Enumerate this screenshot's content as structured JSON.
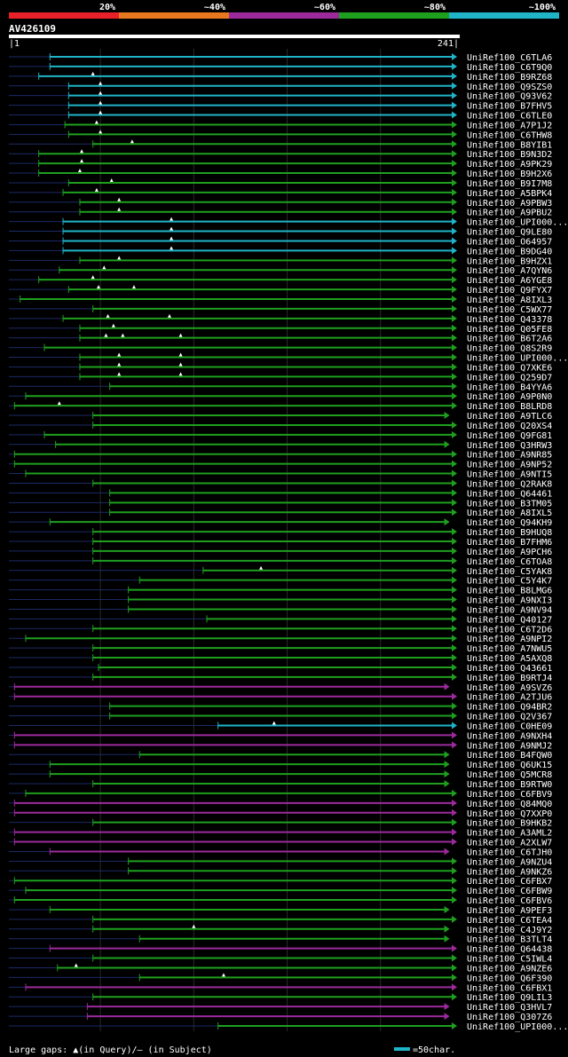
{
  "chart_data": {
    "type": "alignment-overview",
    "title": "AV426109",
    "query_length": 241,
    "axis": {
      "start_label": "|1",
      "end_label": "241|"
    },
    "legend_scale": [
      {
        "label": "20%",
        "color": "#e8202a"
      },
      {
        "label": "~40%",
        "color": "#e87820"
      },
      {
        "label": "~60%",
        "color": "#9c2a9c"
      },
      {
        "label": "~80%",
        "color": "#1ea01e"
      },
      {
        "label": "~100%",
        "color": "#20b4c8"
      }
    ],
    "gridlines": [
      50,
      100,
      150,
      200
    ],
    "footer": {
      "large_gaps": "Large gaps: ▲(in Query)/— (in Subject)",
      "scale_note": "=50char."
    },
    "hits": [
      {
        "label": "UniRef100_C6TLA6",
        "dash_start": 1,
        "bar_start": 23,
        "end": 241,
        "color": "#20b4c8",
        "gaps": []
      },
      {
        "label": "UniRef100_C6T9Q0",
        "dash_start": 1,
        "bar_start": 23,
        "end": 241,
        "color": "#20b4c8",
        "gaps": []
      },
      {
        "label": "UniRef100_B9RZ68",
        "dash_start": 1,
        "bar_start": 17,
        "end": 241,
        "color": "#20b4c8",
        "gaps": [
          46
        ]
      },
      {
        "label": "UniRef100_Q9SZS0",
        "dash_start": 1,
        "bar_start": 33,
        "end": 241,
        "color": "#20b4c8",
        "gaps": [
          50
        ]
      },
      {
        "label": "UniRef100_Q93V62",
        "dash_start": 1,
        "bar_start": 33,
        "end": 241,
        "color": "#20b4c8",
        "gaps": [
          50
        ]
      },
      {
        "label": "UniRef100_B7FHV5",
        "dash_start": 1,
        "bar_start": 33,
        "end": 241,
        "color": "#20b4c8",
        "gaps": [
          50
        ]
      },
      {
        "label": "UniRef100_C6TLE0",
        "dash_start": 1,
        "bar_start": 33,
        "end": 241,
        "color": "#20b4c8",
        "gaps": [
          50
        ]
      },
      {
        "label": "UniRef100_A7P1J2",
        "dash_start": 1,
        "bar_start": 31,
        "end": 241,
        "color": "#1ea01e",
        "gaps": [
          48
        ]
      },
      {
        "label": "UniRef100_C6THW8",
        "dash_start": 1,
        "bar_start": 33,
        "end": 241,
        "color": "#1ea01e",
        "gaps": [
          50
        ]
      },
      {
        "label": "UniRef100_B8YIB1",
        "dash_start": 1,
        "bar_start": 46,
        "end": 241,
        "color": "#1ea01e",
        "gaps": [
          67
        ]
      },
      {
        "label": "UniRef100_B9N3D2",
        "dash_start": 1,
        "bar_start": 17,
        "end": 241,
        "color": "#1ea01e",
        "gaps": [
          40
        ]
      },
      {
        "label": "UniRef100_A9PK29",
        "dash_start": 1,
        "bar_start": 17,
        "end": 241,
        "color": "#1ea01e",
        "gaps": [
          40
        ]
      },
      {
        "label": "UniRef100_B9H2X6",
        "dash_start": 1,
        "bar_start": 17,
        "end": 241,
        "color": "#1ea01e",
        "gaps": [
          39
        ]
      },
      {
        "label": "UniRef100_B9I7M8",
        "dash_start": 1,
        "bar_start": 33,
        "end": 241,
        "color": "#1ea01e",
        "gaps": [
          56
        ]
      },
      {
        "label": "UniRef100_A5BPK4",
        "dash_start": 1,
        "bar_start": 30,
        "end": 241,
        "color": "#1ea01e",
        "gaps": [
          48
        ]
      },
      {
        "label": "UniRef100_A9PBW3",
        "dash_start": 1,
        "bar_start": 39,
        "end": 241,
        "color": "#1ea01e",
        "gaps": [
          60
        ]
      },
      {
        "label": "UniRef100_A9PBU2",
        "dash_start": 1,
        "bar_start": 39,
        "end": 241,
        "color": "#1ea01e",
        "gaps": [
          60
        ]
      },
      {
        "label": "UniRef100_UPI000...",
        "dash_start": 1,
        "bar_start": 30,
        "end": 241,
        "color": "#20b4c8",
        "gaps": [
          88
        ]
      },
      {
        "label": "UniRef100_Q9LE80",
        "dash_start": 1,
        "bar_start": 30,
        "end": 241,
        "color": "#20b4c8",
        "gaps": [
          88
        ]
      },
      {
        "label": "UniRef100_O64957",
        "dash_start": 1,
        "bar_start": 30,
        "end": 241,
        "color": "#20b4c8",
        "gaps": [
          88
        ]
      },
      {
        "label": "UniRef100_B9DG40",
        "dash_start": 1,
        "bar_start": 30,
        "end": 241,
        "color": "#20b4c8",
        "gaps": [
          88
        ]
      },
      {
        "label": "UniRef100_B9HZX1",
        "dash_start": 1,
        "bar_start": 39,
        "end": 241,
        "color": "#1ea01e",
        "gaps": [
          60
        ]
      },
      {
        "label": "UniRef100_A7QYN6",
        "dash_start": 1,
        "bar_start": 28,
        "end": 241,
        "color": "#1ea01e",
        "gaps": [
          52
        ]
      },
      {
        "label": "UniRef100_A6YGE8",
        "dash_start": 1,
        "bar_start": 17,
        "end": 241,
        "color": "#1ea01e",
        "gaps": [
          46
        ]
      },
      {
        "label": "UniRef100_Q9FYX7",
        "dash_start": 1,
        "bar_start": 33,
        "end": 241,
        "color": "#1ea01e",
        "gaps": [
          49,
          68
        ]
      },
      {
        "label": "UniRef100_A8IXL3",
        "dash_start": 1,
        "bar_start": 7,
        "end": 241,
        "color": "#1ea01e",
        "gaps": []
      },
      {
        "label": "UniRef100_C5WX77",
        "dash_start": 1,
        "bar_start": 46,
        "end": 241,
        "color": "#1ea01e",
        "gaps": []
      },
      {
        "label": "UniRef100_Q43378",
        "dash_start": 1,
        "bar_start": 30,
        "end": 241,
        "color": "#1ea01e",
        "gaps": [
          54,
          87
        ]
      },
      {
        "label": "UniRef100_Q05FE8",
        "dash_start": 1,
        "bar_start": 39,
        "end": 241,
        "color": "#1ea01e",
        "gaps": [
          57
        ]
      },
      {
        "label": "UniRef100_B6T2A6",
        "dash_start": 1,
        "bar_start": 39,
        "end": 241,
        "color": "#1ea01e",
        "gaps": [
          53,
          62,
          93
        ]
      },
      {
        "label": "UniRef100_Q8S2R9",
        "dash_start": 1,
        "bar_start": 20,
        "end": 241,
        "color": "#1ea01e",
        "gaps": []
      },
      {
        "label": "UniRef100_UPI000...",
        "dash_start": 1,
        "bar_start": 39,
        "end": 241,
        "color": "#1ea01e",
        "gaps": [
          60,
          93
        ]
      },
      {
        "label": "UniRef100_Q7XKE6",
        "dash_start": 1,
        "bar_start": 39,
        "end": 241,
        "color": "#1ea01e",
        "gaps": [
          60,
          93
        ]
      },
      {
        "label": "UniRef100_Q259D7",
        "dash_start": 1,
        "bar_start": 39,
        "end": 241,
        "color": "#1ea01e",
        "gaps": [
          60,
          93
        ]
      },
      {
        "label": "UniRef100_B4YYA6",
        "dash_start": 1,
        "bar_start": 55,
        "end": 241,
        "color": "#1ea01e",
        "gaps": []
      },
      {
        "label": "UniRef100_A9P0N0",
        "dash_start": 1,
        "bar_start": 10,
        "end": 241,
        "color": "#1ea01e",
        "gaps": []
      },
      {
        "label": "UniRef100_B8LRD8",
        "dash_start": 1,
        "bar_start": 4,
        "end": 241,
        "color": "#1ea01e",
        "gaps": [
          28
        ]
      },
      {
        "label": "UniRef100_A9TLC6",
        "dash_start": 1,
        "bar_start": 46,
        "end": 237,
        "color": "#1ea01e",
        "gaps": []
      },
      {
        "label": "UniRef100_Q20XS4",
        "dash_start": 1,
        "bar_start": 46,
        "end": 241,
        "color": "#1ea01e",
        "gaps": []
      },
      {
        "label": "UniRef100_Q9FG81",
        "dash_start": 1,
        "bar_start": 20,
        "end": 241,
        "color": "#1ea01e",
        "gaps": []
      },
      {
        "label": "UniRef100_Q3HRW3",
        "dash_start": 1,
        "bar_start": 26,
        "end": 237,
        "color": "#1ea01e",
        "gaps": []
      },
      {
        "label": "UniRef100_A9NR85",
        "dash_start": 1,
        "bar_start": 4,
        "end": 241,
        "color": "#1ea01e",
        "gaps": []
      },
      {
        "label": "UniRef100_A9NP52",
        "dash_start": 1,
        "bar_start": 4,
        "end": 241,
        "color": "#1ea01e",
        "gaps": []
      },
      {
        "label": "UniRef100_A9NTI5",
        "dash_start": 1,
        "bar_start": 10,
        "end": 241,
        "color": "#1ea01e",
        "gaps": []
      },
      {
        "label": "UniRef100_Q2RAK8",
        "dash_start": 1,
        "bar_start": 46,
        "end": 241,
        "color": "#1ea01e",
        "gaps": []
      },
      {
        "label": "UniRef100_Q64461",
        "dash_start": 1,
        "bar_start": 55,
        "end": 241,
        "color": "#1ea01e",
        "gaps": []
      },
      {
        "label": "UniRef100_B3TM05",
        "dash_start": 1,
        "bar_start": 55,
        "end": 241,
        "color": "#1ea01e",
        "gaps": []
      },
      {
        "label": "UniRef100_A8IXL5",
        "dash_start": 1,
        "bar_start": 55,
        "end": 241,
        "color": "#1ea01e",
        "gaps": []
      },
      {
        "label": "UniRef100_Q94KH9",
        "dash_start": 1,
        "bar_start": 23,
        "end": 237,
        "color": "#1ea01e",
        "gaps": []
      },
      {
        "label": "UniRef100_B9HUQ8",
        "dash_start": 1,
        "bar_start": 46,
        "end": 241,
        "color": "#1ea01e",
        "gaps": []
      },
      {
        "label": "UniRef100_B7FHM6",
        "dash_start": 1,
        "bar_start": 46,
        "end": 241,
        "color": "#1ea01e",
        "gaps": []
      },
      {
        "label": "UniRef100_A9PCH6",
        "dash_start": 1,
        "bar_start": 46,
        "end": 241,
        "color": "#1ea01e",
        "gaps": []
      },
      {
        "label": "UniRef100_C6TOA8",
        "dash_start": 1,
        "bar_start": 46,
        "end": 241,
        "color": "#1ea01e",
        "gaps": []
      },
      {
        "label": "UniRef100_C5YAK8",
        "dash_start": 1,
        "bar_start": 105,
        "end": 241,
        "color": "#1ea01e",
        "gaps": [
          136
        ]
      },
      {
        "label": "UniRef100_C5Y4K7",
        "dash_start": 1,
        "bar_start": 71,
        "end": 241,
        "color": "#1ea01e",
        "gaps": []
      },
      {
        "label": "UniRef100_B8LMG6",
        "dash_start": 1,
        "bar_start": 65,
        "end": 241,
        "color": "#1ea01e",
        "gaps": []
      },
      {
        "label": "UniRef100_A9NXI3",
        "dash_start": 1,
        "bar_start": 65,
        "end": 241,
        "color": "#1ea01e",
        "gaps": []
      },
      {
        "label": "UniRef100_A9NV94",
        "dash_start": 1,
        "bar_start": 65,
        "end": 241,
        "color": "#1ea01e",
        "gaps": []
      },
      {
        "label": "UniRef100_Q40127",
        "dash_start": 1,
        "bar_start": 107,
        "end": 241,
        "color": "#1ea01e",
        "gaps": []
      },
      {
        "label": "UniRef100_C6T2D6",
        "dash_start": 1,
        "bar_start": 46,
        "end": 241,
        "color": "#1ea01e",
        "gaps": []
      },
      {
        "label": "UniRef100_A9NPI2",
        "dash_start": 1,
        "bar_start": 10,
        "end": 241,
        "color": "#1ea01e",
        "gaps": []
      },
      {
        "label": "UniRef100_A7NWU5",
        "dash_start": 1,
        "bar_start": 46,
        "end": 241,
        "color": "#1ea01e",
        "gaps": []
      },
      {
        "label": "UniRef100_A5AXQ8",
        "dash_start": 1,
        "bar_start": 46,
        "end": 241,
        "color": "#1ea01e",
        "gaps": []
      },
      {
        "label": "UniRef100_Q43661",
        "dash_start": 1,
        "bar_start": 49,
        "end": 241,
        "color": "#1ea01e",
        "gaps": []
      },
      {
        "label": "UniRef100_B9RTJ4",
        "dash_start": 1,
        "bar_start": 46,
        "end": 241,
        "color": "#1ea01e",
        "gaps": []
      },
      {
        "label": "UniRef100_A9SVZ6",
        "dash_start": 1,
        "bar_start": 4,
        "end": 237,
        "color": "#9c2a9c",
        "gaps": []
      },
      {
        "label": "UniRef100_A2TJU6",
        "dash_start": 1,
        "bar_start": 4,
        "end": 241,
        "color": "#9c2a9c",
        "gaps": []
      },
      {
        "label": "UniRef100_Q94BR2",
        "dash_start": 1,
        "bar_start": 55,
        "end": 241,
        "color": "#1ea01e",
        "gaps": []
      },
      {
        "label": "UniRef100_Q2V367",
        "dash_start": 1,
        "bar_start": 55,
        "end": 241,
        "color": "#1ea01e",
        "gaps": []
      },
      {
        "label": "UniRef100_C0HE09",
        "dash_start": 1,
        "bar_start": 113,
        "end": 241,
        "color": "#20b4c8",
        "gaps": [
          143
        ]
      },
      {
        "label": "UniRef100_A9NXH4",
        "dash_start": 1,
        "bar_start": 4,
        "end": 241,
        "color": "#9c2a9c",
        "gaps": []
      },
      {
        "label": "UniRef100_A9NMJ2",
        "dash_start": 1,
        "bar_start": 4,
        "end": 241,
        "color": "#9c2a9c",
        "gaps": []
      },
      {
        "label": "UniRef100_B4FQW0",
        "dash_start": 1,
        "bar_start": 71,
        "end": 237,
        "color": "#1ea01e",
        "gaps": []
      },
      {
        "label": "UniRef100_Q6UK15",
        "dash_start": 1,
        "bar_start": 23,
        "end": 237,
        "color": "#1ea01e",
        "gaps": []
      },
      {
        "label": "UniRef100_Q5MCR8",
        "dash_start": 1,
        "bar_start": 23,
        "end": 237,
        "color": "#1ea01e",
        "gaps": []
      },
      {
        "label": "UniRef100_B9RTW0",
        "dash_start": 1,
        "bar_start": 46,
        "end": 237,
        "color": "#1ea01e",
        "gaps": []
      },
      {
        "label": "UniRef100_C6FBV9",
        "dash_start": 1,
        "bar_start": 10,
        "end": 241,
        "color": "#1ea01e",
        "gaps": []
      },
      {
        "label": "UniRef100_Q84MQ0",
        "dash_start": 1,
        "bar_start": 4,
        "end": 241,
        "color": "#9c2a9c",
        "gaps": []
      },
      {
        "label": "UniRef100_Q7XXP0",
        "dash_start": 1,
        "bar_start": 4,
        "end": 241,
        "color": "#9c2a9c",
        "gaps": []
      },
      {
        "label": "UniRef100_B9HKB2",
        "dash_start": 1,
        "bar_start": 46,
        "end": 241,
        "color": "#1ea01e",
        "gaps": []
      },
      {
        "label": "UniRef100_A3AML2",
        "dash_start": 1,
        "bar_start": 4,
        "end": 241,
        "color": "#9c2a9c",
        "gaps": []
      },
      {
        "label": "UniRef100_A2XLW7",
        "dash_start": 1,
        "bar_start": 4,
        "end": 241,
        "color": "#9c2a9c",
        "gaps": []
      },
      {
        "label": "UniRef100_C6TJH0",
        "dash_start": 1,
        "bar_start": 23,
        "end": 237,
        "color": "#9c2a9c",
        "gaps": []
      },
      {
        "label": "UniRef100_A9NZU4",
        "dash_start": 1,
        "bar_start": 65,
        "end": 241,
        "color": "#1ea01e",
        "gaps": []
      },
      {
        "label": "UniRef100_A9NKZ6",
        "dash_start": 1,
        "bar_start": 65,
        "end": 241,
        "color": "#1ea01e",
        "gaps": []
      },
      {
        "label": "UniRef100_C6FBX7",
        "dash_start": 1,
        "bar_start": 4,
        "end": 241,
        "color": "#1ea01e",
        "gaps": []
      },
      {
        "label": "UniRef100_C6FBW9",
        "dash_start": 1,
        "bar_start": 10,
        "end": 241,
        "color": "#1ea01e",
        "gaps": []
      },
      {
        "label": "UniRef100_C6FBV6",
        "dash_start": 1,
        "bar_start": 4,
        "end": 241,
        "color": "#1ea01e",
        "gaps": []
      },
      {
        "label": "UniRef100_A9PEF3",
        "dash_start": 1,
        "bar_start": 23,
        "end": 237,
        "color": "#1ea01e",
        "gaps": []
      },
      {
        "label": "UniRef100_C6TEA4",
        "dash_start": 1,
        "bar_start": 46,
        "end": 241,
        "color": "#1ea01e",
        "gaps": []
      },
      {
        "label": "UniRef100_C4J9Y2",
        "dash_start": 1,
        "bar_start": 46,
        "end": 237,
        "color": "#1ea01e",
        "gaps": [
          100
        ]
      },
      {
        "label": "UniRef100_B3TLT4",
        "dash_start": 1,
        "bar_start": 71,
        "end": 237,
        "color": "#1ea01e",
        "gaps": []
      },
      {
        "label": "UniRef100_Q64438",
        "dash_start": 1,
        "bar_start": 23,
        "end": 241,
        "color": "#9c2a9c",
        "gaps": []
      },
      {
        "label": "UniRef100_C5IWL4",
        "dash_start": 1,
        "bar_start": 46,
        "end": 241,
        "color": "#1ea01e",
        "gaps": []
      },
      {
        "label": "UniRef100_A9NZE6",
        "dash_start": 1,
        "bar_start": 27,
        "end": 241,
        "color": "#1ea01e",
        "gaps": [
          37
        ]
      },
      {
        "label": "UniRef100_Q6F390",
        "dash_start": 1,
        "bar_start": 71,
        "end": 241,
        "color": "#1ea01e",
        "gaps": [
          116
        ]
      },
      {
        "label": "UniRef100_C6FBX1",
        "dash_start": 1,
        "bar_start": 10,
        "end": 241,
        "color": "#9c2a9c",
        "gaps": []
      },
      {
        "label": "UniRef100_Q9LIL3",
        "dash_start": 1,
        "bar_start": 46,
        "end": 241,
        "color": "#1ea01e",
        "gaps": []
      },
      {
        "label": "UniRef100_Q3HVL7",
        "dash_start": 1,
        "bar_start": 43,
        "end": 237,
        "color": "#9c2a9c",
        "gaps": []
      },
      {
        "label": "UniRef100_Q307Z6",
        "dash_start": 1,
        "bar_start": 43,
        "end": 237,
        "color": "#9c2a9c",
        "gaps": []
      },
      {
        "label": "UniRef100_UPI000...",
        "dash_start": 1,
        "bar_start": 113,
        "end": 241,
        "color": "#1ea01e",
        "gaps": []
      }
    ]
  }
}
